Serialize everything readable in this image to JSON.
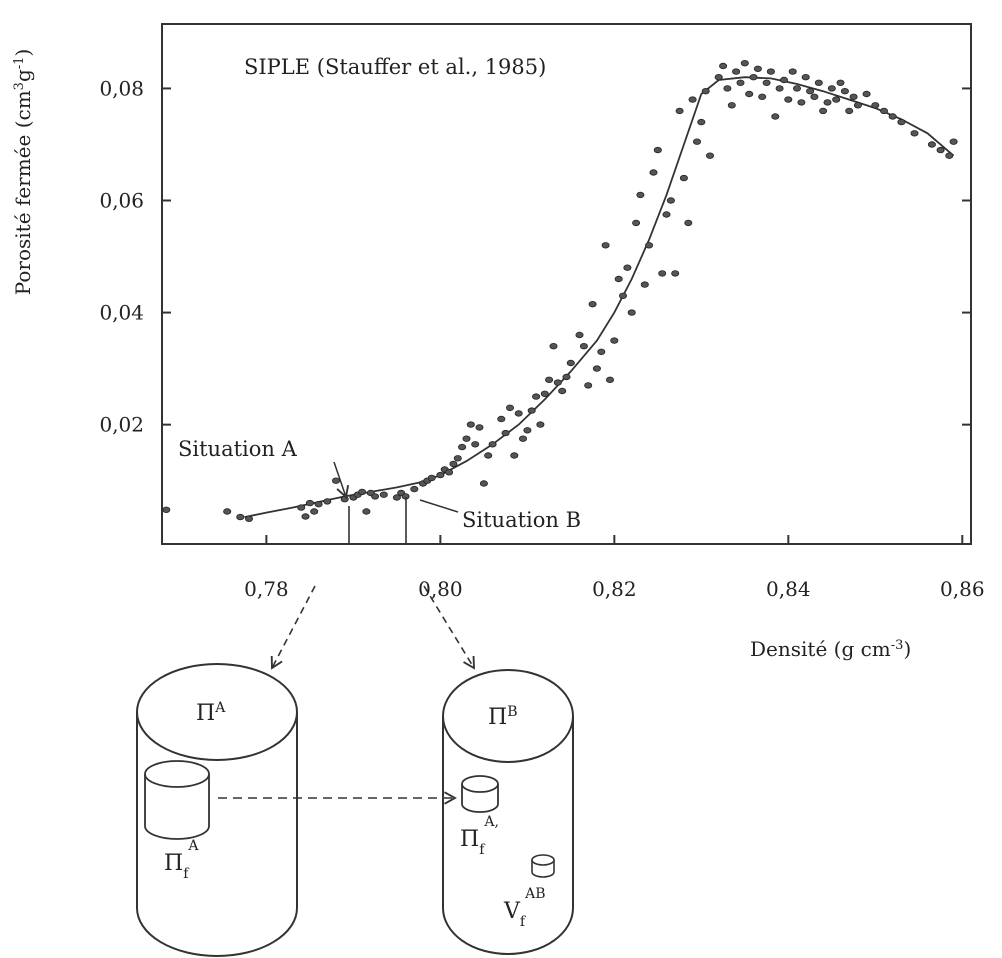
{
  "chart_data": {
    "type": "scatter",
    "title": "SIPLE (Stauffer et al., 1985)",
    "xlabel": "Densité (g cm-3)",
    "ylabel": "Porosité fermée (cm3g-1)",
    "xlabel_parts": {
      "main": "Densité (g cm",
      "sup": "-3",
      "tail": ")"
    },
    "ylabel_parts": {
      "main": "Porosité fermée (cm",
      "sup1": "3",
      "mid": "g",
      "sup2": "-1",
      "tail": ")"
    },
    "xlim": [
      0.768,
      0.861
    ],
    "ylim": [
      -0.0013,
      0.0915
    ],
    "x_ticks": [
      0.78,
      0.8,
      0.82,
      0.84,
      0.86
    ],
    "x_tick_labels": [
      "0,78",
      "0,80",
      "0,82",
      "0,84",
      "0,86"
    ],
    "y_ticks": [
      0.02,
      0.04,
      0.06,
      0.08
    ],
    "y_tick_labels": [
      "0,02",
      "0,04",
      "0,06",
      "0,08"
    ],
    "grid": false,
    "series": [
      {
        "marker": "dot",
        "points": [
          [
            0.7685,
            0.0048
          ],
          [
            0.7755,
            0.0045
          ],
          [
            0.777,
            0.0035
          ],
          [
            0.778,
            0.0032
          ],
          [
            0.784,
            0.0052
          ],
          [
            0.7845,
            0.0036
          ],
          [
            0.785,
            0.006
          ],
          [
            0.7855,
            0.0045
          ],
          [
            0.786,
            0.0058
          ],
          [
            0.787,
            0.0063
          ],
          [
            0.788,
            0.01
          ],
          [
            0.789,
            0.0067
          ],
          [
            0.79,
            0.007
          ],
          [
            0.7905,
            0.0075
          ],
          [
            0.791,
            0.008
          ],
          [
            0.7915,
            0.0045
          ],
          [
            0.792,
            0.0078
          ],
          [
            0.7925,
            0.0072
          ],
          [
            0.7935,
            0.0075
          ],
          [
            0.795,
            0.007
          ],
          [
            0.7955,
            0.0078
          ],
          [
            0.796,
            0.0072
          ],
          [
            0.797,
            0.0085
          ],
          [
            0.798,
            0.0095
          ],
          [
            0.7985,
            0.01
          ],
          [
            0.799,
            0.0105
          ],
          [
            0.8,
            0.011
          ],
          [
            0.8005,
            0.012
          ],
          [
            0.801,
            0.0115
          ],
          [
            0.8015,
            0.013
          ],
          [
            0.802,
            0.014
          ],
          [
            0.8025,
            0.016
          ],
          [
            0.803,
            0.0175
          ],
          [
            0.8035,
            0.02
          ],
          [
            0.804,
            0.0165
          ],
          [
            0.8045,
            0.0195
          ],
          [
            0.805,
            0.0095
          ],
          [
            0.8055,
            0.0145
          ],
          [
            0.806,
            0.0165
          ],
          [
            0.807,
            0.021
          ],
          [
            0.8075,
            0.0185
          ],
          [
            0.808,
            0.023
          ],
          [
            0.8085,
            0.0145
          ],
          [
            0.809,
            0.022
          ],
          [
            0.8095,
            0.0175
          ],
          [
            0.81,
            0.019
          ],
          [
            0.8105,
            0.0225
          ],
          [
            0.811,
            0.025
          ],
          [
            0.8115,
            0.02
          ],
          [
            0.812,
            0.0255
          ],
          [
            0.8125,
            0.028
          ],
          [
            0.813,
            0.034
          ],
          [
            0.8135,
            0.0275
          ],
          [
            0.814,
            0.026
          ],
          [
            0.8145,
            0.0285
          ],
          [
            0.815,
            0.031
          ],
          [
            0.816,
            0.036
          ],
          [
            0.8165,
            0.034
          ],
          [
            0.817,
            0.027
          ],
          [
            0.8175,
            0.0415
          ],
          [
            0.818,
            0.03
          ],
          [
            0.8185,
            0.033
          ],
          [
            0.819,
            0.052
          ],
          [
            0.8195,
            0.028
          ],
          [
            0.82,
            0.035
          ],
          [
            0.8205,
            0.046
          ],
          [
            0.821,
            0.043
          ],
          [
            0.8215,
            0.048
          ],
          [
            0.822,
            0.04
          ],
          [
            0.8225,
            0.056
          ],
          [
            0.823,
            0.061
          ],
          [
            0.8235,
            0.045
          ],
          [
            0.824,
            0.052
          ],
          [
            0.8245,
            0.065
          ],
          [
            0.825,
            0.069
          ],
          [
            0.8255,
            0.047
          ],
          [
            0.826,
            0.0575
          ],
          [
            0.8265,
            0.06
          ],
          [
            0.827,
            0.047
          ],
          [
            0.8275,
            0.076
          ],
          [
            0.828,
            0.064
          ],
          [
            0.8285,
            0.056
          ],
          [
            0.829,
            0.078
          ],
          [
            0.8295,
            0.0705
          ],
          [
            0.83,
            0.074
          ],
          [
            0.8305,
            0.0795
          ],
          [
            0.831,
            0.068
          ],
          [
            0.832,
            0.082
          ],
          [
            0.8325,
            0.084
          ],
          [
            0.833,
            0.08
          ],
          [
            0.8335,
            0.077
          ],
          [
            0.834,
            0.083
          ],
          [
            0.8345,
            0.081
          ],
          [
            0.835,
            0.0845
          ],
          [
            0.8355,
            0.079
          ],
          [
            0.836,
            0.082
          ],
          [
            0.8365,
            0.0835
          ],
          [
            0.837,
            0.0785
          ],
          [
            0.8375,
            0.081
          ],
          [
            0.838,
            0.083
          ],
          [
            0.8385,
            0.075
          ],
          [
            0.839,
            0.08
          ],
          [
            0.8395,
            0.0815
          ],
          [
            0.84,
            0.078
          ],
          [
            0.8405,
            0.083
          ],
          [
            0.841,
            0.08
          ],
          [
            0.8415,
            0.0775
          ],
          [
            0.842,
            0.082
          ],
          [
            0.8425,
            0.0795
          ],
          [
            0.843,
            0.0785
          ],
          [
            0.8435,
            0.081
          ],
          [
            0.844,
            0.076
          ],
          [
            0.8445,
            0.0775
          ],
          [
            0.845,
            0.08
          ],
          [
            0.8455,
            0.078
          ],
          [
            0.846,
            0.081
          ],
          [
            0.8465,
            0.0795
          ],
          [
            0.847,
            0.076
          ],
          [
            0.8475,
            0.0785
          ],
          [
            0.848,
            0.077
          ],
          [
            0.849,
            0.079
          ],
          [
            0.85,
            0.077
          ],
          [
            0.851,
            0.076
          ],
          [
            0.852,
            0.075
          ],
          [
            0.853,
            0.074
          ],
          [
            0.8545,
            0.072
          ],
          [
            0.8565,
            0.07
          ],
          [
            0.8575,
            0.069
          ],
          [
            0.859,
            0.0705
          ],
          [
            0.8585,
            0.068
          ]
        ]
      },
      {
        "marker": "line",
        "points": [
          [
            0.7775,
            0.0035
          ],
          [
            0.78,
            0.0043
          ],
          [
            0.783,
            0.0052
          ],
          [
            0.786,
            0.0062
          ],
          [
            0.789,
            0.0072
          ],
          [
            0.792,
            0.008
          ],
          [
            0.795,
            0.0088
          ],
          [
            0.798,
            0.0098
          ],
          [
            0.8,
            0.011
          ],
          [
            0.803,
            0.0135
          ],
          [
            0.806,
            0.0165
          ],
          [
            0.809,
            0.02
          ],
          [
            0.812,
            0.0245
          ],
          [
            0.815,
            0.0295
          ],
          [
            0.818,
            0.035
          ],
          [
            0.82,
            0.04
          ],
          [
            0.822,
            0.046
          ],
          [
            0.824,
            0.053
          ],
          [
            0.826,
            0.061
          ],
          [
            0.828,
            0.07
          ],
          [
            0.83,
            0.079
          ],
          [
            0.832,
            0.0815
          ],
          [
            0.835,
            0.082
          ],
          [
            0.838,
            0.0818
          ],
          [
            0.841,
            0.0808
          ],
          [
            0.844,
            0.0795
          ],
          [
            0.847,
            0.078
          ],
          [
            0.85,
            0.0765
          ],
          [
            0.853,
            0.0745
          ],
          [
            0.856,
            0.072
          ],
          [
            0.859,
            0.068
          ]
        ]
      }
    ],
    "annotations": [
      {
        "text": "Situation A",
        "x": 0.787,
        "y": 0.0045
      },
      {
        "text": "Situation B",
        "x": 0.794,
        "y": 0.0045
      }
    ]
  },
  "diagram": {
    "cylinder_a": {
      "label": "Π",
      "label_sup": "A",
      "inner_label": "Π",
      "inner_sub": "f",
      "inner_sup": "A"
    },
    "cylinder_b": {
      "label": "Π",
      "label_sup": "B",
      "inner1_label": "Π",
      "inner1_sub": "f",
      "inner1_sup": "A,",
      "inner2_label": "V",
      "inner2_sub": "f",
      "inner2_sup": "AB"
    }
  }
}
